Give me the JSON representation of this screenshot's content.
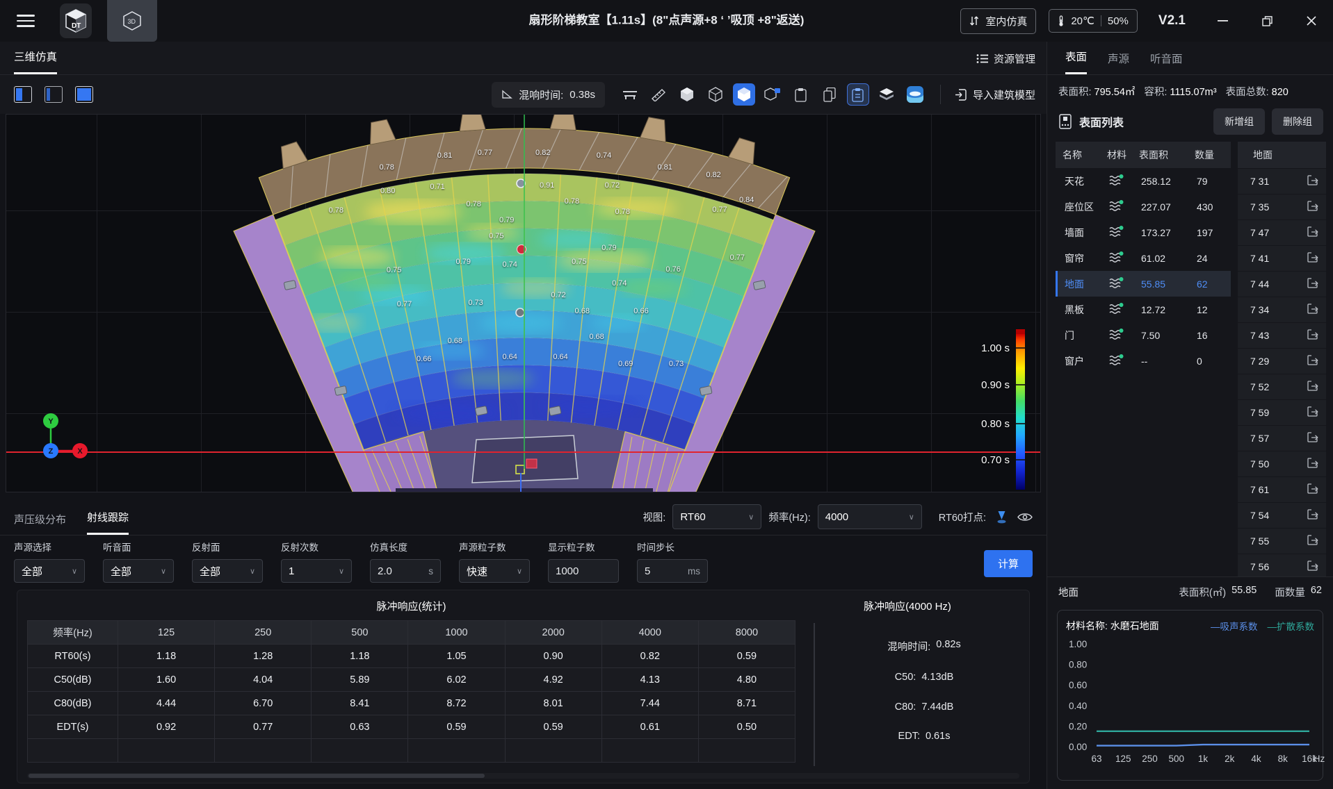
{
  "titlebar": {
    "title": "扇形阶梯教室【1.11s】(8\"点声源+8 ‘ ’吸顶 +8\"返送)",
    "mode": "室内仿真",
    "temp": "20℃",
    "humidity": "50%",
    "version": "V2.1"
  },
  "main_tabs": {
    "sim3d": "三维仿真",
    "resource": "资源管理"
  },
  "toolbar": {
    "rt_label": "混响时间:",
    "rt_value": "0.38s",
    "import_model": "导入建筑模型"
  },
  "view_bar": {
    "view_label": "视图:",
    "view_value": "RT60",
    "freq_label": "频率(Hz):",
    "freq_value": "4000",
    "rt60_label": "RT60打点:"
  },
  "bottom_tabs": {
    "spl": "声压级分布",
    "ray": "射线跟踪"
  },
  "controls": [
    {
      "label": "声源选择",
      "value": "全部",
      "type": "select"
    },
    {
      "label": "听音面",
      "value": "全部",
      "type": "select"
    },
    {
      "label": "反射面",
      "value": "全部",
      "type": "select"
    },
    {
      "label": "反射次数",
      "value": "1",
      "type": "select"
    },
    {
      "label": "仿真长度",
      "value": "2.0",
      "suffix": "s",
      "type": "input"
    },
    {
      "label": "声源粒子数",
      "value": "快速",
      "type": "select"
    },
    {
      "label": "显示粒子数",
      "value": "1000",
      "type": "input"
    },
    {
      "label": "时间步长",
      "value": "5",
      "suffix": "ms",
      "type": "input"
    }
  ],
  "calc_label": "计算",
  "chart_data": [
    {
      "type": "table",
      "title": "脉冲响应(统计)",
      "columns": [
        "频率(Hz)",
        "125",
        "250",
        "500",
        "1000",
        "2000",
        "4000",
        "8000"
      ],
      "rows": [
        [
          "RT60(s)",
          "1.18",
          "1.28",
          "1.18",
          "1.05",
          "0.90",
          "0.82",
          "0.59"
        ],
        [
          "C50(dB)",
          "1.60",
          "4.04",
          "5.89",
          "6.02",
          "4.92",
          "4.13",
          "4.80"
        ],
        [
          "C80(dB)",
          "4.44",
          "6.70",
          "8.41",
          "8.72",
          "8.01",
          "7.44",
          "8.71"
        ],
        [
          "EDT(s)",
          "0.92",
          "0.77",
          "0.63",
          "0.59",
          "0.59",
          "0.61",
          "0.50"
        ]
      ]
    },
    {
      "type": "line",
      "title": "材料名称: 水磨石地面",
      "x": [
        "63",
        "125",
        "250",
        "500",
        "1k",
        "2k",
        "4k",
        "8k",
        "16k"
      ],
      "xunit": "Hz",
      "ylim": [
        0,
        1
      ],
      "yticks": [
        "1.00",
        "0.80",
        "0.60",
        "0.40",
        "0.20",
        "0.00"
      ],
      "series": [
        {
          "name": "吸声系数",
          "color": "#5b8fe8",
          "values": [
            0.01,
            0.01,
            0.01,
            0.01,
            0.02,
            0.02,
            0.02,
            0.02,
            0.02
          ]
        },
        {
          "name": "扩散系数",
          "color": "#2fa89b",
          "values": [
            0.15,
            0.15,
            0.15,
            0.15,
            0.15,
            0.15,
            0.15,
            0.15,
            0.15
          ]
        }
      ]
    }
  ],
  "impulse_summary": {
    "title": "脉冲响应(4000 Hz)",
    "items": [
      {
        "label": "混响时间:",
        "value": "0.82s"
      },
      {
        "label": "C50:",
        "value": "4.13dB"
      },
      {
        "label": "C80:",
        "value": "7.44dB"
      },
      {
        "label": "EDT:",
        "value": "0.61s"
      }
    ]
  },
  "canvas": {
    "colorbar": [
      {
        "text": "1.00 s",
        "off": 12
      },
      {
        "text": "0.90 s",
        "off": 65
      },
      {
        "text": "0.80 s",
        "off": 121
      },
      {
        "text": "0.70 s",
        "off": 173
      }
    ],
    "points": [
      {
        "v": "0.81",
        "x": 42.4,
        "y": 10.8
      },
      {
        "v": "0.77",
        "x": 46.3,
        "y": 10.2
      },
      {
        "v": "0.82",
        "x": 51.9,
        "y": 10.2
      },
      {
        "v": "0.74",
        "x": 57.8,
        "y": 10.8
      },
      {
        "v": "0.78",
        "x": 36.8,
        "y": 14.0
      },
      {
        "v": "0.81",
        "x": 63.7,
        "y": 14.0
      },
      {
        "v": "0.82",
        "x": 68.4,
        "y": 16.0
      },
      {
        "v": "0.80",
        "x": 36.9,
        "y": 20.3
      },
      {
        "v": "0.71",
        "x": 41.7,
        "y": 19.2
      },
      {
        "v": "0.91",
        "x": 52.3,
        "y": 18.7
      },
      {
        "v": "0.72",
        "x": 58.6,
        "y": 18.7
      },
      {
        "v": "0.84",
        "x": 71.6,
        "y": 22.6
      },
      {
        "v": "0.78",
        "x": 31.9,
        "y": 25.5
      },
      {
        "v": "0.78",
        "x": 45.2,
        "y": 23.7
      },
      {
        "v": "0.78",
        "x": 54.7,
        "y": 23.0
      },
      {
        "v": "0.78",
        "x": 59.6,
        "y": 25.7
      },
      {
        "v": "0.77",
        "x": 69.0,
        "y": 25.3
      },
      {
        "v": "0.79",
        "x": 48.4,
        "y": 28.0
      },
      {
        "v": "0.75",
        "x": 47.4,
        "y": 32.3
      },
      {
        "v": "0.79",
        "x": 58.3,
        "y": 35.4
      },
      {
        "v": "0.79",
        "x": 44.2,
        "y": 39.0
      },
      {
        "v": "0.74",
        "x": 48.7,
        "y": 39.7
      },
      {
        "v": "0.75",
        "x": 55.4,
        "y": 39.0
      },
      {
        "v": "0.77",
        "x": 70.7,
        "y": 37.9
      },
      {
        "v": "0.75",
        "x": 37.5,
        "y": 41.3
      },
      {
        "v": "0.76",
        "x": 64.5,
        "y": 41.1
      },
      {
        "v": "0.74",
        "x": 59.3,
        "y": 44.7
      },
      {
        "v": "0.77",
        "x": 38.5,
        "y": 50.3
      },
      {
        "v": "0.73",
        "x": 45.4,
        "y": 49.9
      },
      {
        "v": "0.72",
        "x": 53.4,
        "y": 47.9
      },
      {
        "v": "0.68",
        "x": 55.7,
        "y": 52.1
      },
      {
        "v": "0.66",
        "x": 61.4,
        "y": 52.1
      },
      {
        "v": "0.68",
        "x": 43.4,
        "y": 60.0
      },
      {
        "v": "0.68",
        "x": 57.1,
        "y": 58.9
      },
      {
        "v": "0.66",
        "x": 40.4,
        "y": 64.8
      },
      {
        "v": "0.64",
        "x": 48.7,
        "y": 64.3
      },
      {
        "v": "0.64",
        "x": 53.6,
        "y": 64.3
      },
      {
        "v": "0.69",
        "x": 59.9,
        "y": 66.1
      },
      {
        "v": "0.73",
        "x": 64.8,
        "y": 66.1
      }
    ]
  },
  "sidebar": {
    "tabs": [
      "表面",
      "声源",
      "听音面"
    ],
    "stats": [
      {
        "label": "表面积:",
        "value": "795.54㎡"
      },
      {
        "label": "容积:",
        "value": "1115.07m³"
      },
      {
        "label": "表面总数:",
        "value": "820"
      }
    ],
    "list_title": "表面列表",
    "add_group": "新增组",
    "delete_group": "删除组",
    "table": {
      "header": [
        "名称",
        "材料",
        "表面积",
        "数量"
      ],
      "rows": [
        {
          "name": "天花",
          "area": "258.12",
          "count": "79"
        },
        {
          "name": "座位区",
          "area": "227.07",
          "count": "430"
        },
        {
          "name": "墙面",
          "area": "173.27",
          "count": "197"
        },
        {
          "name": "窗帘",
          "area": "61.02",
          "count": "24"
        },
        {
          "name": "地面",
          "area": "55.85",
          "count": "62",
          "selected": true
        },
        {
          "name": "黑板",
          "area": "12.72",
          "count": "12"
        },
        {
          "name": "门",
          "area": "7.50",
          "count": "16"
        },
        {
          "name": "窗户",
          "area": "--",
          "count": "0"
        }
      ]
    },
    "surface_col": {
      "header": "地面",
      "items": [
        "7 31",
        "7 35",
        "7 47",
        "7 41",
        "7 44",
        "7 34",
        "7 43",
        "7 29",
        "7 52",
        "7 59",
        "7 57",
        "7 50",
        "7 61",
        "7 54",
        "7 55",
        "7 56"
      ]
    },
    "selection_summary": {
      "name": "地面",
      "area_label": "表面积(㎡)",
      "area": "55.85",
      "count_label": "面数量",
      "count": "62"
    }
  }
}
